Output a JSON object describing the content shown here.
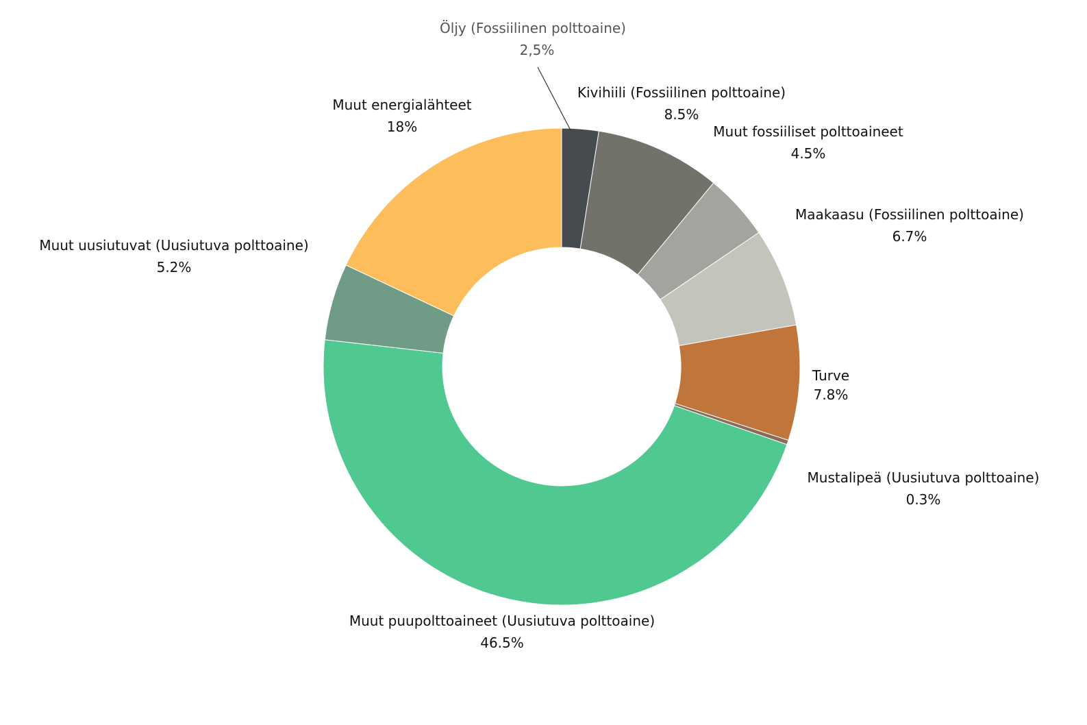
{
  "chart_data": {
    "type": "pie",
    "style": "donut",
    "title": "",
    "legend": "none",
    "slices": [
      {
        "name": "Öljy (Fossiilinen polttoaine)",
        "value": 2.5,
        "label": "2,5%",
        "color": "#454b4e"
      },
      {
        "name": "Kivihiili (Fossiilinen polttoaine)",
        "value": 8.5,
        "label": "8.5%",
        "color": "#72726a"
      },
      {
        "name": "Muut fossiiliset polttoaineet",
        "value": 4.5,
        "label": "4.5%",
        "color": "#a4a49e"
      },
      {
        "name": "Maakaasu (Fossiilinen polttoaine)",
        "value": 6.7,
        "label": "6.7%",
        "color": "#c4c4bd"
      },
      {
        "name": "Turve",
        "value": 7.8,
        "label": "7.8%",
        "color": "#c0763a"
      },
      {
        "name": "Mustalipeä (Uusiutuva polttoaine)",
        "value": 0.3,
        "label": "0.3%",
        "color": "#8a6a58"
      },
      {
        "name": "Muut puupolttoaineet (Uusiutuva polttoaine)",
        "value": 46.5,
        "label": "46.5%",
        "color": "#4fc98f"
      },
      {
        "name": "Muut uusiutuvat (Uusiutuva polttoaine)",
        "value": 5.2,
        "label": "5.2%",
        "color": "#709c87"
      },
      {
        "name": "Muut energialähteet",
        "value": 18,
        "label": "18%",
        "color": "#fdbd5b"
      }
    ]
  }
}
